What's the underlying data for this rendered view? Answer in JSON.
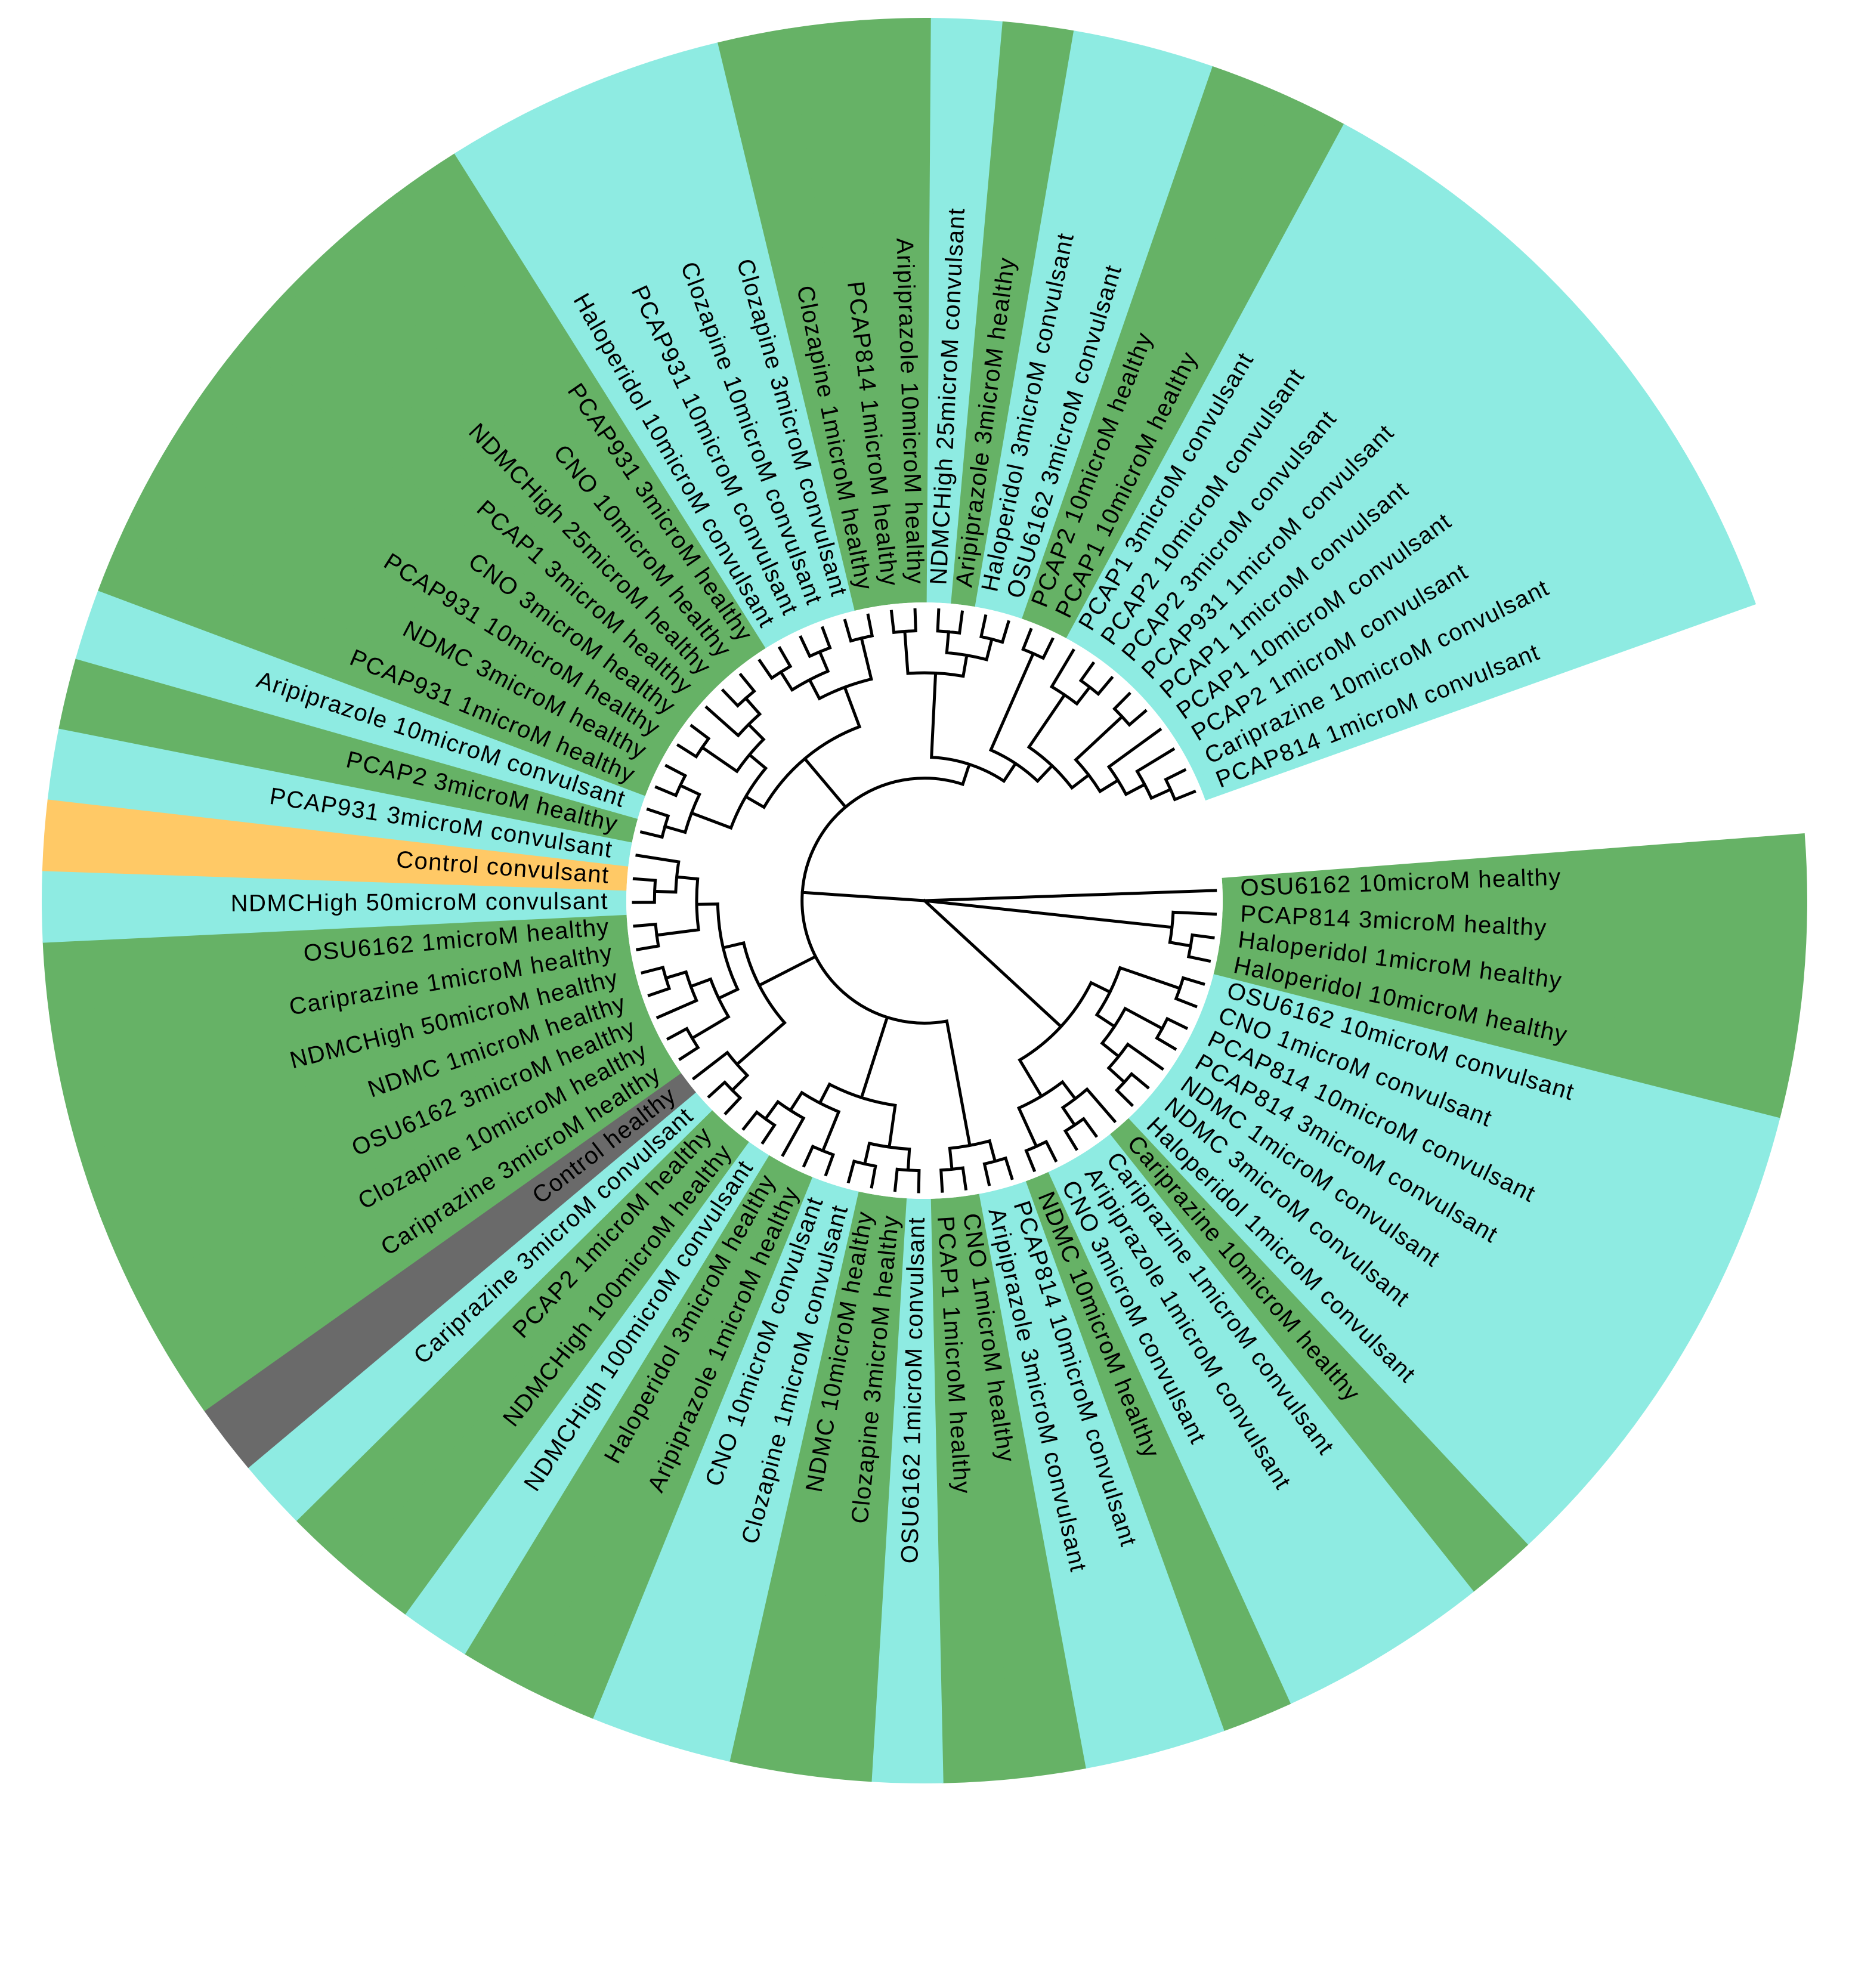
{
  "chart_data": {
    "type": "circular-dendrogram",
    "colors": {
      "healthy": "#66b266",
      "convulsant": "#8eebe2",
      "control_convulsant": "#ffc966",
      "control_healthy": "#6a6a6a",
      "branch": "#000000",
      "label": "#000000"
    },
    "leaves": [
      {
        "label": "OSU6162 10microM healthy",
        "group": "healthy"
      },
      {
        "label": "PCAP814 3microM healthy",
        "group": "healthy"
      },
      {
        "label": "Haloperidol 1microM healthy",
        "group": "healthy"
      },
      {
        "label": "Haloperidol 10microM healthy",
        "group": "healthy"
      },
      {
        "label": "OSU6162 10microM convulsant",
        "group": "convulsant"
      },
      {
        "label": "CNO 1microM convulsant",
        "group": "convulsant"
      },
      {
        "label": "PCAP814 10microM convulsant",
        "group": "convulsant"
      },
      {
        "label": "PCAP814 3microM convulsant",
        "group": "convulsant"
      },
      {
        "label": "NDMC 1microM convulsant",
        "group": "convulsant"
      },
      {
        "label": "NDMC 3microM convulsant",
        "group": "convulsant"
      },
      {
        "label": "Haloperidol 1microM convulsant",
        "group": "convulsant"
      },
      {
        "label": "Cariprazine 10microM healthy",
        "group": "healthy"
      },
      {
        "label": "Cariprazine 1microM convulsant",
        "group": "convulsant"
      },
      {
        "label": "Aripiprazole 1microM convulsant",
        "group": "convulsant"
      },
      {
        "label": "CNO 3microM convulsant",
        "group": "convulsant"
      },
      {
        "label": "NDMC 10microM healthy",
        "group": "healthy"
      },
      {
        "label": "PCAP814 10microM convulsant",
        "group": "convulsant"
      },
      {
        "label": "Aripiprazole 3microM convulsant",
        "group": "convulsant"
      },
      {
        "label": "CNO 1microM healthy",
        "group": "healthy"
      },
      {
        "label": "PCAP1 1microM healthy",
        "group": "healthy"
      },
      {
        "label": "OSU6162 1microM convulsant",
        "group": "convulsant"
      },
      {
        "label": "Clozapine 3microM healthy",
        "group": "healthy"
      },
      {
        "label": "NDMC 10microM healthy",
        "group": "healthy"
      },
      {
        "label": "Clozapine 1microM convulsant",
        "group": "convulsant"
      },
      {
        "label": "CNO 10microM convulsant",
        "group": "convulsant"
      },
      {
        "label": "Aripiprazole 1microM healthy",
        "group": "healthy"
      },
      {
        "label": "Haloperidol 3microM healthy",
        "group": "healthy"
      },
      {
        "label": "NDMCHigh 100microM convulsant",
        "group": "convulsant"
      },
      {
        "label": "NDMCHigh 100microM healthy",
        "group": "healthy"
      },
      {
        "label": "PCAP2 1microM healthy",
        "group": "healthy"
      },
      {
        "label": "Cariprazine 3microM convulsant",
        "group": "convulsant"
      },
      {
        "label": "Control healthy",
        "group": "control_healthy"
      },
      {
        "label": "Cariprazine 3microM healthy",
        "group": "healthy"
      },
      {
        "label": "Clozapine 10microM healthy",
        "group": "healthy"
      },
      {
        "label": "OSU6162 3microM healthy",
        "group": "healthy"
      },
      {
        "label": "NDMC 1microM healthy",
        "group": "healthy"
      },
      {
        "label": "NDMCHigh 50microM healthy",
        "group": "healthy"
      },
      {
        "label": "Cariprazine 1microM healthy",
        "group": "healthy"
      },
      {
        "label": "OSU6162 1microM healthy",
        "group": "healthy"
      },
      {
        "label": "NDMCHigh 50microM convulsant",
        "group": "convulsant"
      },
      {
        "label": "Control convulsant",
        "group": "control_convulsant"
      },
      {
        "label": "PCAP931 3microM convulsant",
        "group": "convulsant"
      },
      {
        "label": "PCAP2 3microM healthy",
        "group": "healthy"
      },
      {
        "label": "Aripiprazole 10microM convulsant",
        "group": "convulsant"
      },
      {
        "label": "PCAP931 1microM healthy",
        "group": "healthy"
      },
      {
        "label": "NDMC 3microM healthy",
        "group": "healthy"
      },
      {
        "label": "PCAP931 10microM healthy",
        "group": "healthy"
      },
      {
        "label": "CNO 3microM healthy",
        "group": "healthy"
      },
      {
        "label": "PCAP1 3microM healthy",
        "group": "healthy"
      },
      {
        "label": "NDMCHigh 25microM healthy",
        "group": "healthy"
      },
      {
        "label": "CNO 10microM healthy",
        "group": "healthy"
      },
      {
        "label": "PCAP931 3microM healthy",
        "group": "healthy"
      },
      {
        "label": "Haloperidol 10microM convulsant",
        "group": "convulsant"
      },
      {
        "label": "PCAP931 10microM convulsant",
        "group": "convulsant"
      },
      {
        "label": "Clozapine 10microM convulsant",
        "group": "convulsant"
      },
      {
        "label": "Clozapine 3microM convulsant",
        "group": "convulsant"
      },
      {
        "label": "Clozapine 1microM healthy",
        "group": "healthy"
      },
      {
        "label": "PCAP814 1microM healthy",
        "group": "healthy"
      },
      {
        "label": "Aripiprazole 10microM healthy",
        "group": "healthy"
      },
      {
        "label": "NDMCHigh 25microM convulsant",
        "group": "convulsant"
      },
      {
        "label": "Aripiprazole 3microM healthy",
        "group": "healthy"
      },
      {
        "label": "Haloperidol 3microM convulsant",
        "group": "convulsant"
      },
      {
        "label": "OSU6162 3microM convulsant",
        "group": "convulsant"
      },
      {
        "label": "PCAP2 10microM healthy",
        "group": "healthy"
      },
      {
        "label": "PCAP1 10microM healthy",
        "group": "healthy"
      },
      {
        "label": "PCAP1 3microM convulsant",
        "group": "convulsant"
      },
      {
        "label": "PCAP2 10microM convulsant",
        "group": "convulsant"
      },
      {
        "label": "PCAP2 3microM convulsant",
        "group": "convulsant"
      },
      {
        "label": "PCAP931 1microM convulsant",
        "group": "convulsant"
      },
      {
        "label": "PCAP1 1microM convulsant",
        "group": "convulsant"
      },
      {
        "label": "PCAP1 10microM convulsant",
        "group": "convulsant"
      },
      {
        "label": "PCAP2 1microM convulsant",
        "group": "convulsant"
      },
      {
        "label": "Cariprazine 10microM convulsant",
        "group": "convulsant"
      },
      {
        "label": "PCAP814 1microM convulsant",
        "group": "convulsant"
      }
    ]
  }
}
